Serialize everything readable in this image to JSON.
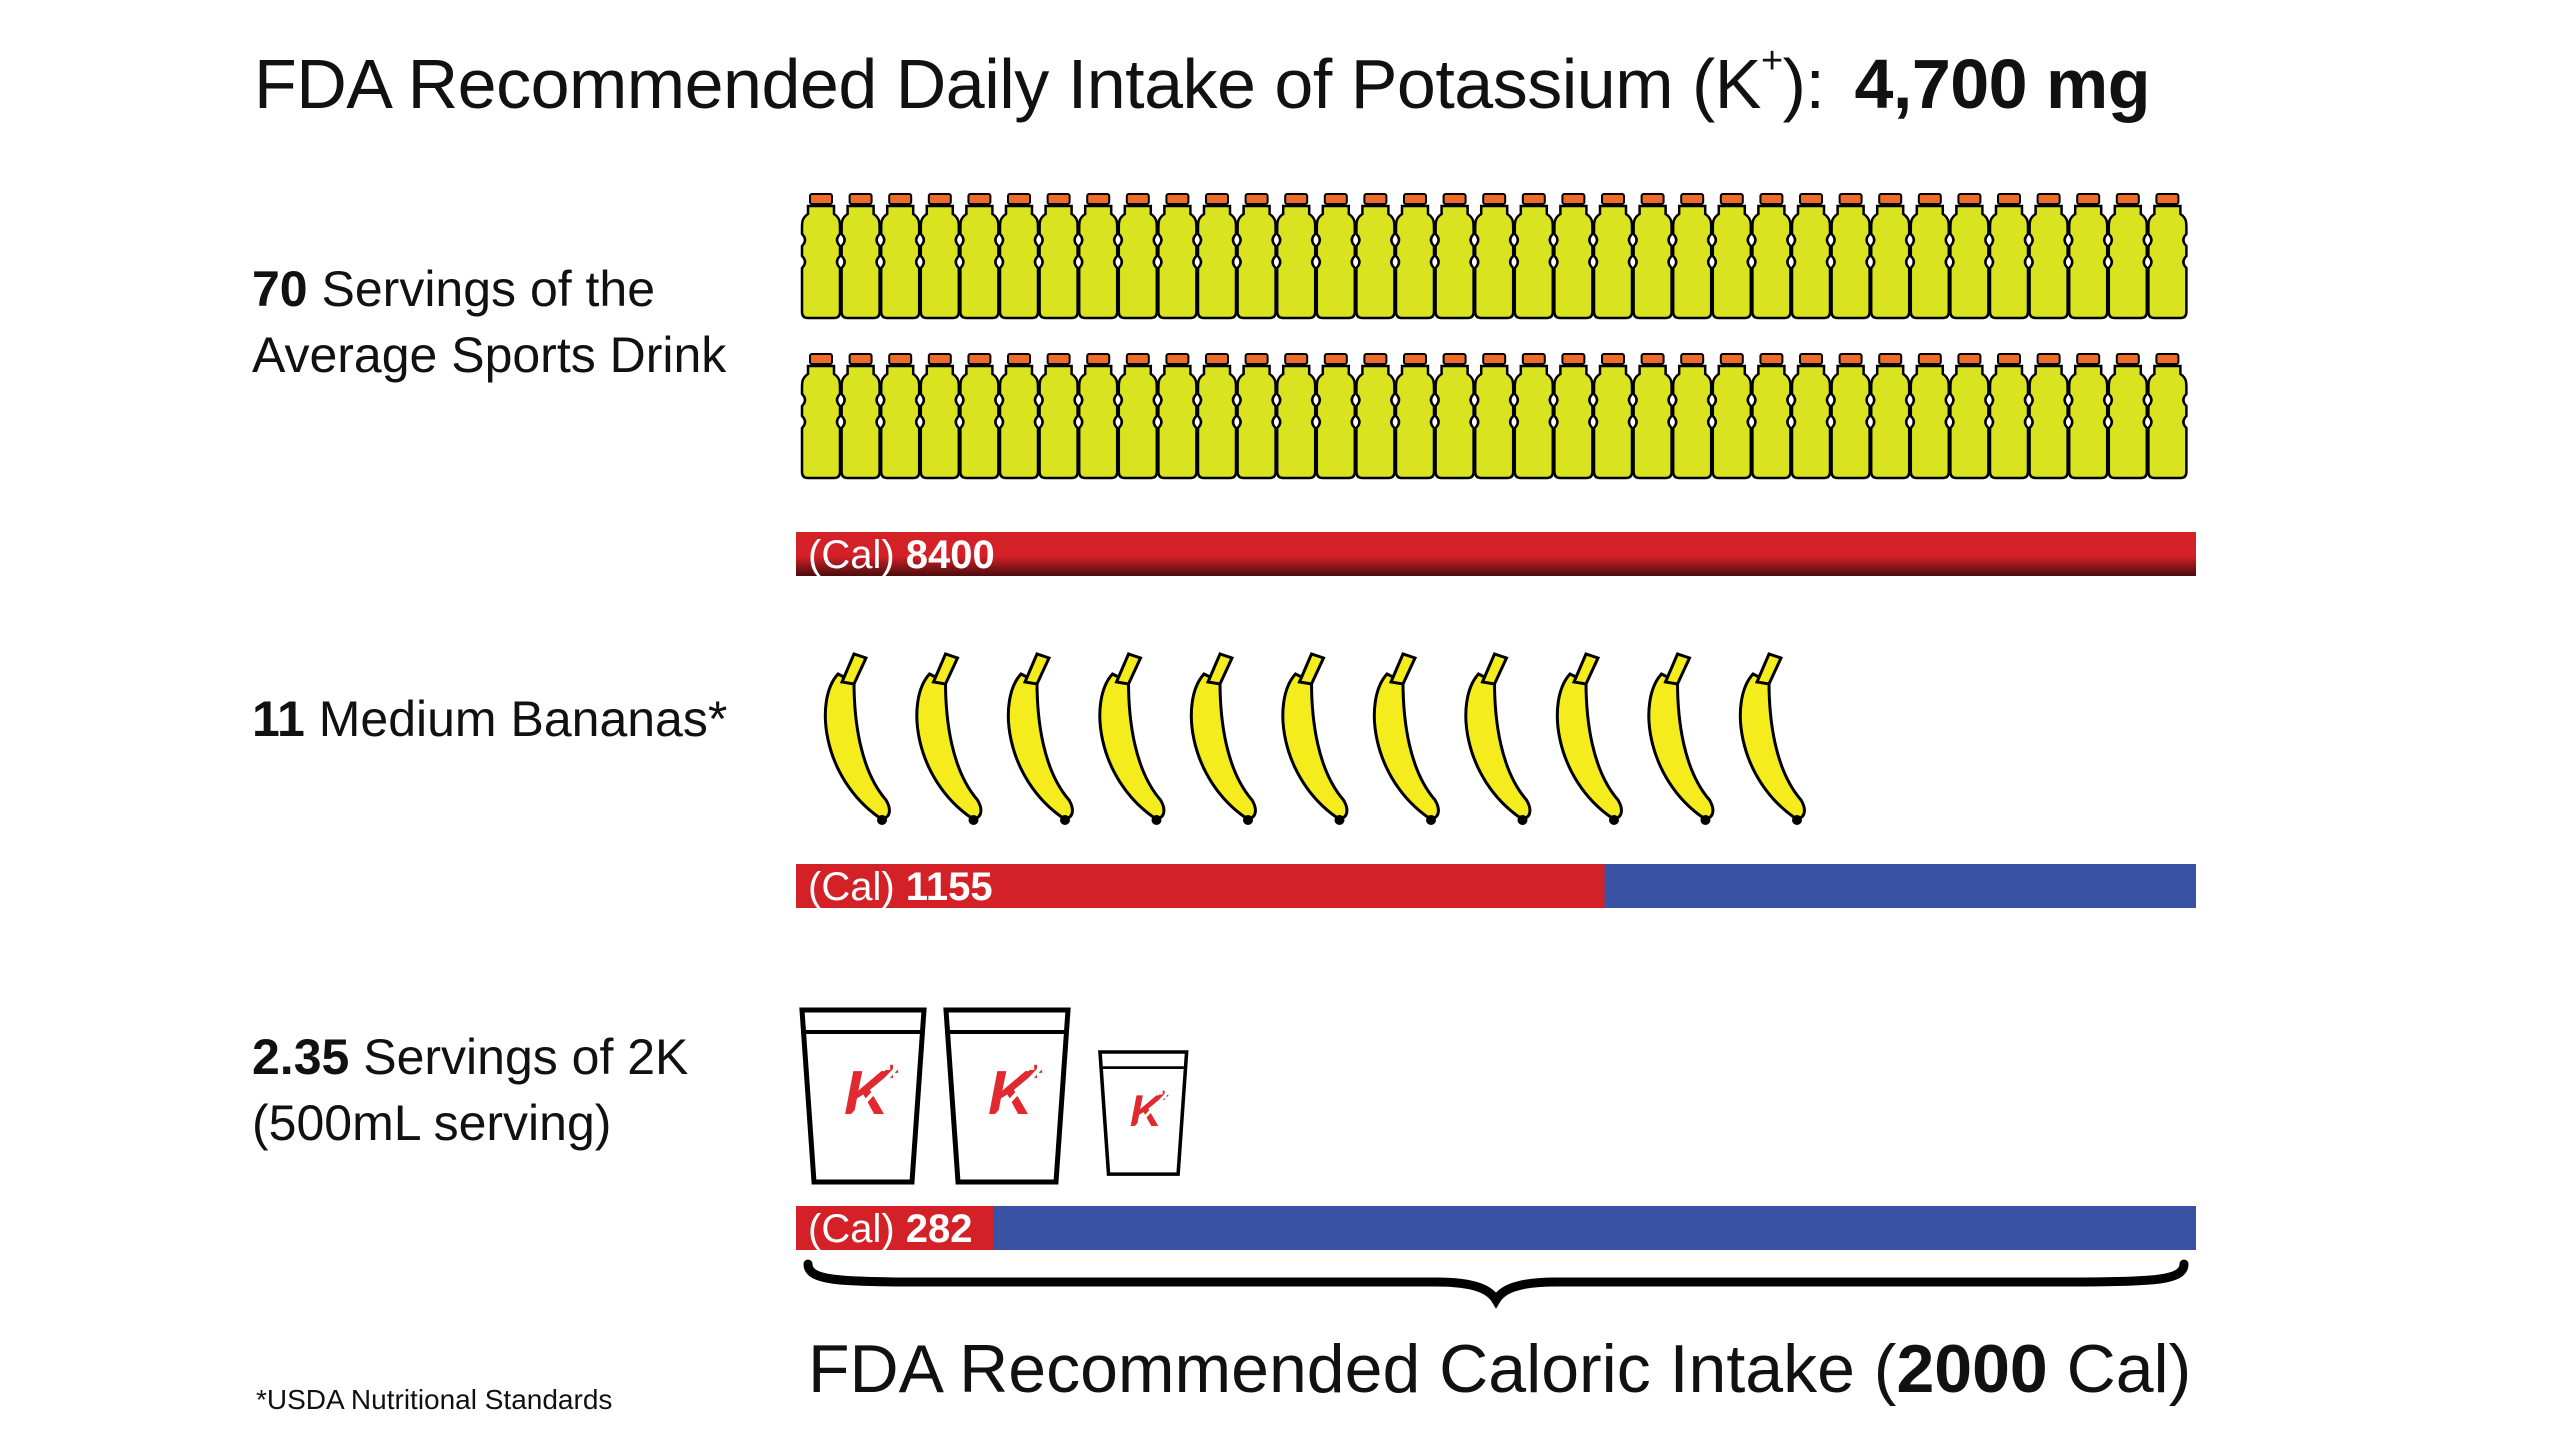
{
  "title": {
    "text": "FDA Recommended Daily Intake of Potassium (K",
    "sup": "+",
    "after": "):",
    "amount": "4,700 mg"
  },
  "rows": [
    {
      "count": "70",
      "line1": " Servings of the",
      "line2": "Average Sports Drink",
      "icon": "sports-drink-bottle-icon",
      "icon_count": 70
    },
    {
      "count": "11",
      "line1": " Medium Bananas*",
      "line2": "",
      "icon": "banana-icon",
      "icon_count": 11
    },
    {
      "count": "2.35",
      "line1": " Servings of 2K",
      "line2": "(500mL serving)",
      "icon": "2k-cup-icon",
      "icon_count": 2.35
    }
  ],
  "cal_prefix": "(Cal)",
  "cup_logo": "K",
  "cup_logo_sup": "+",
  "chart_data": {
    "type": "bar",
    "categories": [
      "Average Sports Drink",
      "Medium Bananas",
      "2K"
    ],
    "values": [
      8400,
      1155,
      282
    ],
    "value_labels": [
      "8400",
      "1155",
      "282"
    ],
    "reference_value": 2000,
    "reference_label_pre": "FDA Recommended Caloric Intake (",
    "reference_label_bold": "2000",
    "reference_label_post": " Cal)",
    "xlim": [
      0,
      2000
    ],
    "grid": false
  },
  "footnote": "*USDA Nutritional Standards",
  "colors": {
    "bar_red": "#d42027",
    "bar_blue": "#3a52a3",
    "bottle_fill": "#d9e320",
    "bottle_cap": "#ef6b2a",
    "banana_fill": "#f4ec1c",
    "cup_logo": "#e02a2f"
  }
}
